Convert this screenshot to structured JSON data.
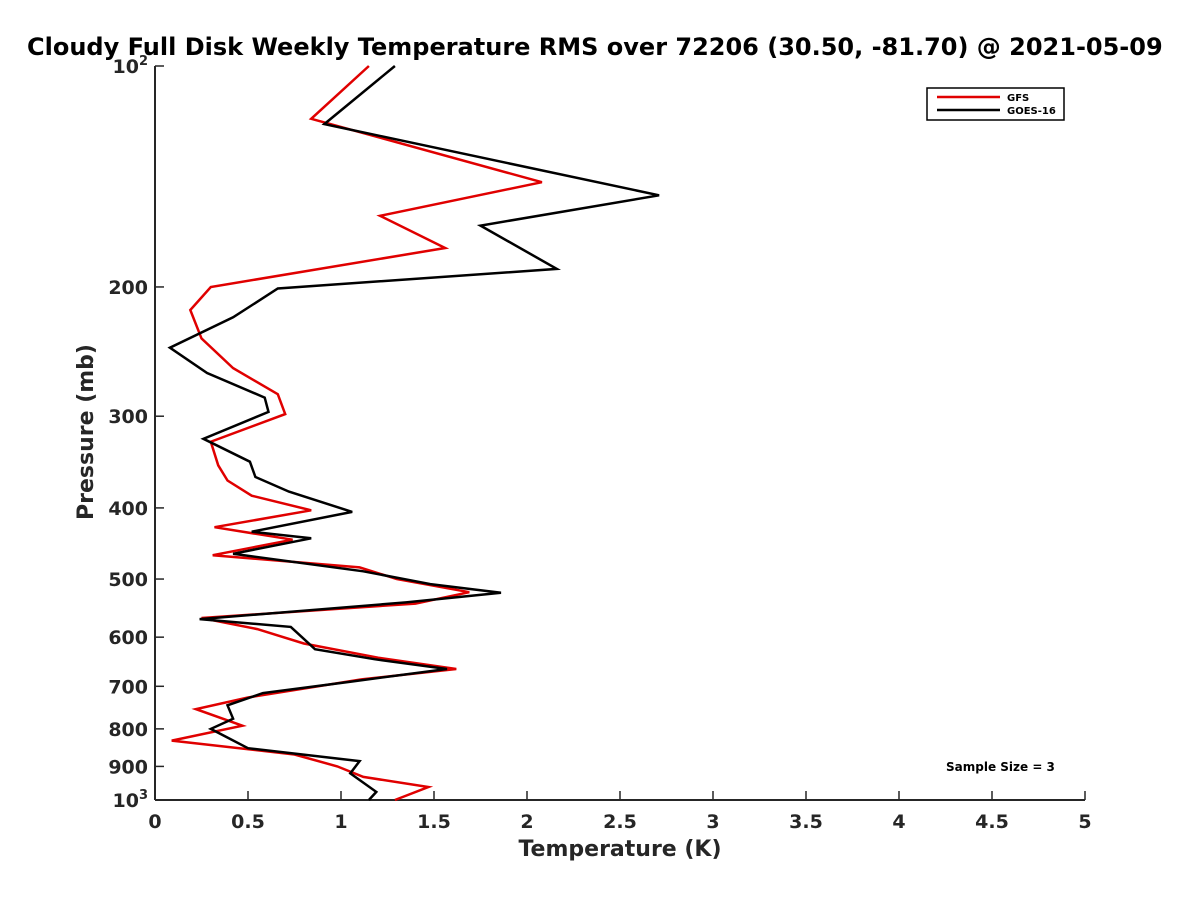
{
  "chart_data": {
    "type": "line",
    "title": "Cloudy Full Disk Weekly Temperature RMS over 72206 (30.50, -81.70) @ 2021-05-09",
    "xlabel": "Temperature (K)",
    "ylabel": "Pressure (mb)",
    "xlim": [
      0,
      5
    ],
    "ylim": [
      1000,
      100
    ],
    "y_scale": "log",
    "y_reversed": true,
    "x_ticks": [
      "0",
      "0.5",
      "1",
      "1.5",
      "2",
      "2.5",
      "3",
      "3.5",
      "4",
      "4.5",
      "5"
    ],
    "y_ticks": [
      {
        "value": 100,
        "base": "10",
        "exp": "2"
      },
      {
        "value": 200,
        "label": "200"
      },
      {
        "value": 300,
        "label": "300"
      },
      {
        "value": 400,
        "label": "400"
      },
      {
        "value": 500,
        "label": "500"
      },
      {
        "value": 600,
        "label": "600"
      },
      {
        "value": 700,
        "label": "700"
      },
      {
        "value": 800,
        "label": "800"
      },
      {
        "value": 900,
        "label": "900"
      },
      {
        "value": 1000,
        "base": "10",
        "exp": "3"
      }
    ],
    "grid": false,
    "legend_position": "top-right",
    "annotation": "Sample Size = 3",
    "series": [
      {
        "name": "GFS",
        "color": "#e00000",
        "points": [
          [
            1.15,
            100
          ],
          [
            0.84,
            118
          ],
          [
            2.08,
            144
          ],
          [
            1.21,
            160
          ],
          [
            1.56,
            177
          ],
          [
            0.3,
            200
          ],
          [
            0.19,
            215
          ],
          [
            0.25,
            235
          ],
          [
            0.42,
            258
          ],
          [
            0.66,
            280
          ],
          [
            0.7,
            298
          ],
          [
            0.3,
            325
          ],
          [
            0.34,
            350
          ],
          [
            0.39,
            367
          ],
          [
            0.52,
            385
          ],
          [
            0.84,
            403
          ],
          [
            0.32,
            425
          ],
          [
            0.74,
            442
          ],
          [
            0.31,
            464
          ],
          [
            1.1,
            482
          ],
          [
            1.3,
            500
          ],
          [
            1.69,
            521
          ],
          [
            1.4,
            540
          ],
          [
            0.25,
            565
          ],
          [
            0.55,
            585
          ],
          [
            0.8,
            612
          ],
          [
            1.2,
            640
          ],
          [
            1.62,
            663
          ],
          [
            1.11,
            685
          ],
          [
            0.5,
            725
          ],
          [
            0.22,
            752
          ],
          [
            0.47,
            792
          ],
          [
            0.09,
            830
          ],
          [
            0.75,
            867
          ],
          [
            0.98,
            900
          ],
          [
            1.12,
            930
          ],
          [
            1.47,
            960
          ],
          [
            1.29,
            1000
          ]
        ]
      },
      {
        "name": "GOES-16",
        "color": "#000000",
        "points": [
          [
            1.29,
            100
          ],
          [
            0.91,
            120
          ],
          [
            2.71,
            150
          ],
          [
            1.75,
            165
          ],
          [
            2.16,
            189
          ],
          [
            0.66,
            201
          ],
          [
            0.42,
            220
          ],
          [
            0.08,
            242
          ],
          [
            0.28,
            262
          ],
          [
            0.59,
            283
          ],
          [
            0.61,
            296
          ],
          [
            0.26,
            322
          ],
          [
            0.51,
            346
          ],
          [
            0.54,
            363
          ],
          [
            0.72,
            380
          ],
          [
            1.06,
            405
          ],
          [
            0.52,
            431
          ],
          [
            0.84,
            440
          ],
          [
            0.42,
            462
          ],
          [
            1.12,
            488
          ],
          [
            1.48,
            508
          ],
          [
            1.86,
            522
          ],
          [
            1.35,
            538
          ],
          [
            0.24,
            567
          ],
          [
            0.73,
            581
          ],
          [
            0.86,
            623
          ],
          [
            1.18,
            643
          ],
          [
            1.57,
            663
          ],
          [
            1.05,
            690
          ],
          [
            0.58,
            715
          ],
          [
            0.39,
            743
          ],
          [
            0.42,
            775
          ],
          [
            0.3,
            800
          ],
          [
            0.5,
            850
          ],
          [
            1.1,
            885
          ],
          [
            1.05,
            920
          ],
          [
            1.19,
            975
          ],
          [
            1.15,
            1000
          ]
        ]
      }
    ]
  }
}
